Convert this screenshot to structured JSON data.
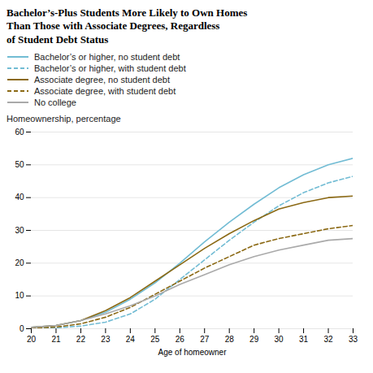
{
  "chart_data": {
    "type": "line",
    "title": "Bachelor’s-Plus Students More Likely to Own Homes\nThan Those with Associate Degrees, Regardless\nof Student Debt Status",
    "ylabel": "Homeownership, percentage",
    "xlabel": "Age of homeowner",
    "x": [
      20,
      21,
      22,
      23,
      24,
      25,
      26,
      27,
      28,
      29,
      30,
      31,
      32,
      33
    ],
    "series": [
      {
        "name": "Bachelor’s or higher, no student debt",
        "color": "#72bcd4",
        "line_style": "solid",
        "values": [
          0.4,
          1.0,
          2.5,
          5.0,
          9.0,
          14.0,
          20.0,
          26.5,
          32.5,
          38.0,
          43.0,
          47.0,
          50.0,
          52.0
        ]
      },
      {
        "name": "Bachelor’s or higher, with student debt",
        "color": "#72bcd4",
        "line_style": "dashed",
        "values": [
          0.1,
          0.3,
          0.8,
          2.0,
          4.5,
          9.0,
          15.0,
          21.0,
          27.0,
          32.5,
          37.5,
          41.5,
          44.5,
          46.5
        ]
      },
      {
        "name": "Associate degree, no student debt",
        "color": "#8B6914",
        "line_style": "solid",
        "values": [
          0.4,
          1.0,
          2.5,
          5.5,
          9.5,
          14.5,
          19.5,
          24.5,
          29.0,
          33.0,
          36.5,
          38.5,
          40.0,
          40.5
        ]
      },
      {
        "name": "Associate degree, with student debt",
        "color": "#8B6914",
        "line_style": "dashed",
        "values": [
          0.2,
          0.5,
          1.5,
          3.5,
          6.5,
          10.5,
          14.5,
          18.5,
          22.0,
          25.5,
          27.5,
          29.0,
          30.5,
          31.5
        ]
      },
      {
        "name": "No college",
        "color": "#aaaaaa",
        "line_style": "solid",
        "values": [
          0.4,
          1.0,
          2.5,
          4.5,
          7.0,
          10.0,
          13.5,
          16.5,
          19.5,
          22.0,
          24.0,
          25.5,
          27.0,
          27.5
        ]
      }
    ],
    "xlim": [
      20,
      33
    ],
    "xticks": [
      20,
      21,
      22,
      23,
      24,
      25,
      26,
      27,
      28,
      29,
      30,
      31,
      32,
      33
    ],
    "ylim": [
      0,
      60
    ],
    "yticks": [
      0,
      10,
      20,
      30,
      40,
      50,
      60
    ],
    "grid": true,
    "legend": "top"
  }
}
